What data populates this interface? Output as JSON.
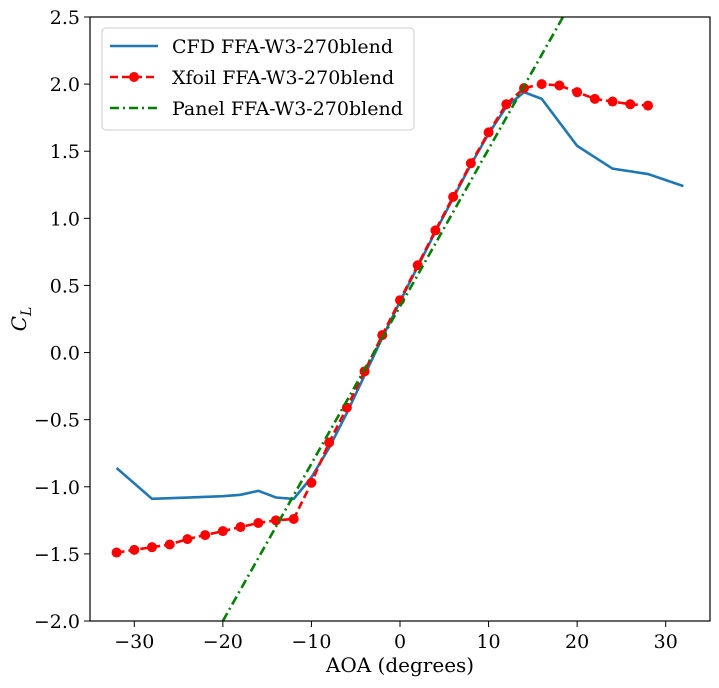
{
  "chart_data": {
    "type": "line",
    "xlabel": "AOA (degrees)",
    "ylabel_main": "C",
    "ylabel_sub": "L",
    "xlim": [
      -35,
      35
    ],
    "ylim": [
      -2.0,
      2.5
    ],
    "xticks": [
      -30,
      -20,
      -10,
      0,
      10,
      20,
      30
    ],
    "xtick_labels": [
      "−30",
      "−20",
      "−10",
      "0",
      "10",
      "20",
      "30"
    ],
    "yticks": [
      -2.0,
      -1.5,
      -1.0,
      -0.5,
      0.0,
      0.5,
      1.0,
      1.5,
      2.0,
      2.5
    ],
    "ytick_labels": [
      "−2.0",
      "−1.5",
      "−1.0",
      "−0.5",
      "0.0",
      "0.5",
      "1.0",
      "1.5",
      "2.0",
      "2.5"
    ],
    "grid": false,
    "legend_position": "top-left",
    "series": [
      {
        "name": "CFD FFA-W3-270blend",
        "color": "#1f77b4",
        "style": "solid",
        "marker": "none",
        "x": [
          -32,
          -28,
          -24,
          -20,
          -18,
          -16,
          -14,
          -12,
          -10,
          -8,
          -6,
          -4,
          -2,
          0,
          2,
          4,
          6,
          8,
          10,
          12,
          14,
          16,
          20,
          24,
          28,
          32
        ],
        "y": [
          -0.86,
          -1.09,
          -1.08,
          -1.07,
          -1.06,
          -1.03,
          -1.08,
          -1.09,
          -0.93,
          -0.71,
          -0.45,
          -0.17,
          0.11,
          0.38,
          0.64,
          0.9,
          1.15,
          1.4,
          1.63,
          1.83,
          1.94,
          1.89,
          1.54,
          1.37,
          1.33,
          1.24
        ]
      },
      {
        "name": "Xfoil FFA-W3-270blend",
        "color": "#ff0000",
        "style": "dashed",
        "marker": "circle",
        "x": [
          -32,
          -30,
          -28,
          -26,
          -24,
          -22,
          -20,
          -18,
          -16,
          -14,
          -12,
          -10,
          -8,
          -6,
          -4,
          -2,
          0,
          2,
          4,
          6,
          8,
          10,
          12,
          14,
          16,
          18,
          20,
          22,
          24,
          26,
          28
        ],
        "y": [
          -1.49,
          -1.47,
          -1.45,
          -1.43,
          -1.39,
          -1.36,
          -1.33,
          -1.3,
          -1.27,
          -1.25,
          -1.24,
          -0.97,
          -0.67,
          -0.41,
          -0.14,
          0.13,
          0.39,
          0.65,
          0.91,
          1.16,
          1.41,
          1.64,
          1.85,
          1.97,
          2.0,
          1.99,
          1.94,
          1.89,
          1.87,
          1.85,
          1.84
        ]
      },
      {
        "name": "Panel FFA-W3-270blend",
        "color": "#008000",
        "style": "dashdot",
        "marker": "none",
        "x": [
          -20,
          18.4
        ],
        "y": [
          -2.0,
          2.5
        ]
      }
    ]
  }
}
